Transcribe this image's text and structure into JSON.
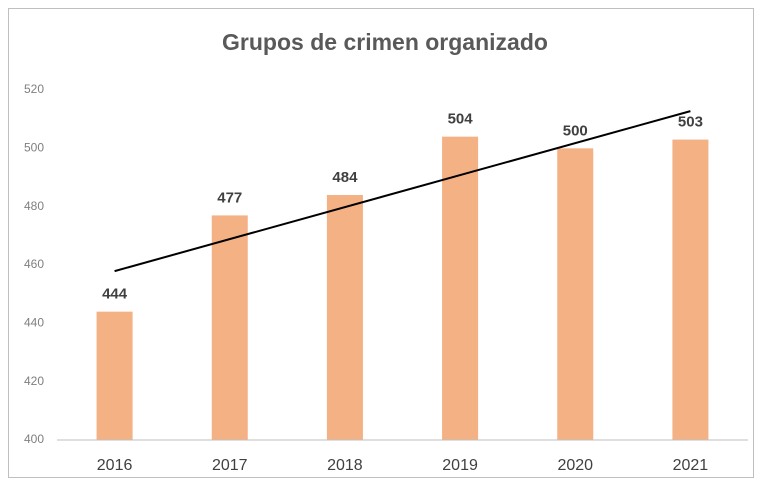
{
  "chart_data": {
    "type": "bar",
    "title": "Grupos de crimen organizado",
    "categories": [
      "2016",
      "2017",
      "2018",
      "2019",
      "2020",
      "2021"
    ],
    "values": [
      444,
      477,
      484,
      504,
      500,
      503
    ],
    "color": "#f4b183",
    "ylim": [
      400,
      520
    ],
    "yticks": [
      400,
      420,
      440,
      460,
      480,
      500,
      520
    ],
    "grid": false,
    "trendline": true
  }
}
